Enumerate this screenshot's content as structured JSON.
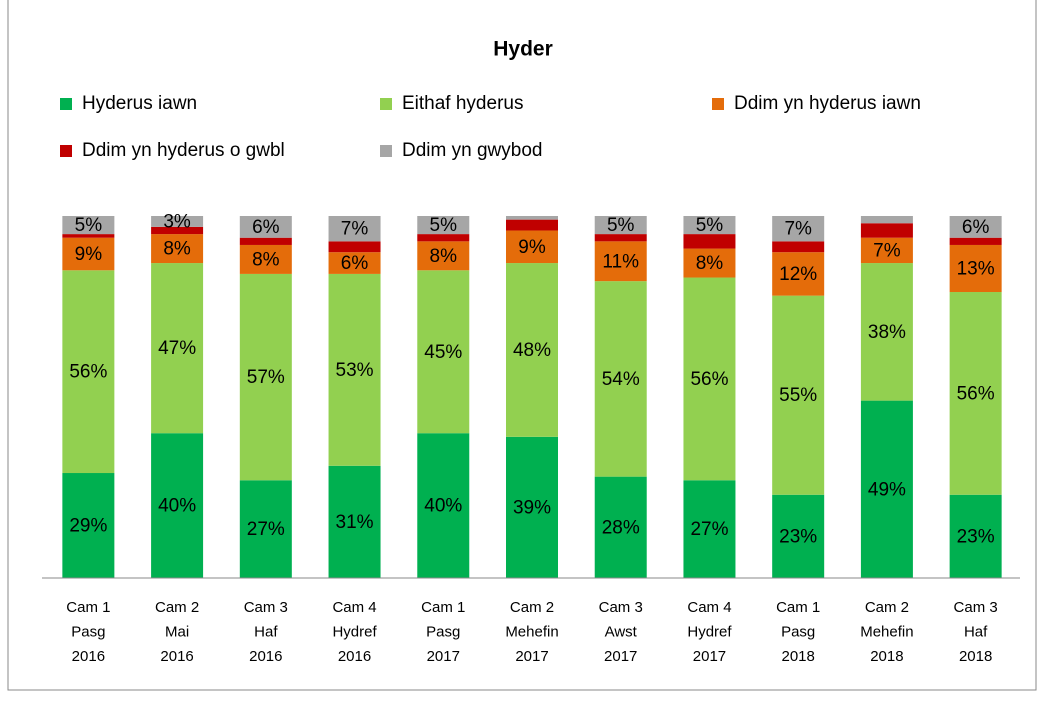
{
  "chart_data": {
    "type": "stacked_bar",
    "title": "Hyder",
    "categories": [
      [
        "Cam 1",
        "Pasg",
        "2016"
      ],
      [
        "Cam 2",
        "Mai",
        "2016"
      ],
      [
        "Cam 3",
        "Haf",
        "2016"
      ],
      [
        "Cam 4",
        "Hydref",
        "2016"
      ],
      [
        "Cam 1",
        "Pasg",
        "2017"
      ],
      [
        "Cam 2",
        "Mehefin",
        "2017"
      ],
      [
        "Cam 3",
        "Awst",
        "2017"
      ],
      [
        "Cam 4",
        "Hydref",
        "2017"
      ],
      [
        "Cam 1",
        "Pasg",
        "2018"
      ],
      [
        "Cam 2",
        "Mehefin",
        "2018"
      ],
      [
        "Cam 3",
        "Haf",
        "2018"
      ]
    ],
    "ylim": [
      0,
      100
    ],
    "series": [
      {
        "name": "Hyderus iawn",
        "color": "#00b050",
        "values": [
          29,
          40,
          27,
          31,
          40,
          39,
          28,
          27,
          23,
          49,
          23
        ],
        "value_labels": [
          "29%",
          "40%",
          "27%",
          "31%",
          "40%",
          "39%",
          "28%",
          "27%",
          "23%",
          "49%",
          "23%"
        ]
      },
      {
        "name": "Eithaf hyderus",
        "color": "#92d050",
        "values": [
          56,
          47,
          57,
          53,
          45,
          48,
          54,
          56,
          55,
          38,
          56
        ],
        "value_labels": [
          "56%",
          "47%",
          "57%",
          "53%",
          "45%",
          "48%",
          "54%",
          "56%",
          "55%",
          "38%",
          "56%"
        ]
      },
      {
        "name": "Ddim yn hyderus iawn",
        "color": "#e46c0a",
        "values": [
          9,
          8,
          8,
          6,
          8,
          9,
          11,
          8,
          12,
          7,
          13
        ],
        "value_labels": [
          "9%",
          "8%",
          "8%",
          "6%",
          "8%",
          "9%",
          "11%",
          "8%",
          "12%",
          "7%",
          "13%"
        ]
      },
      {
        "name": "Ddim yn hyderus o gwbl",
        "color": "#c00000",
        "values": [
          1,
          2,
          2,
          3,
          2,
          3,
          2,
          4,
          3,
          4,
          2
        ]
      },
      {
        "name": "Ddim yn gwybod",
        "color": "#a6a6a6",
        "values": [
          5,
          3,
          6,
          7,
          5,
          1,
          5,
          5,
          7,
          2,
          6
        ],
        "value_labels": [
          "5%",
          "3%",
          "6%",
          "7%",
          "5%",
          null,
          "5%",
          "5%",
          "7%",
          null,
          "6%"
        ]
      }
    ]
  }
}
